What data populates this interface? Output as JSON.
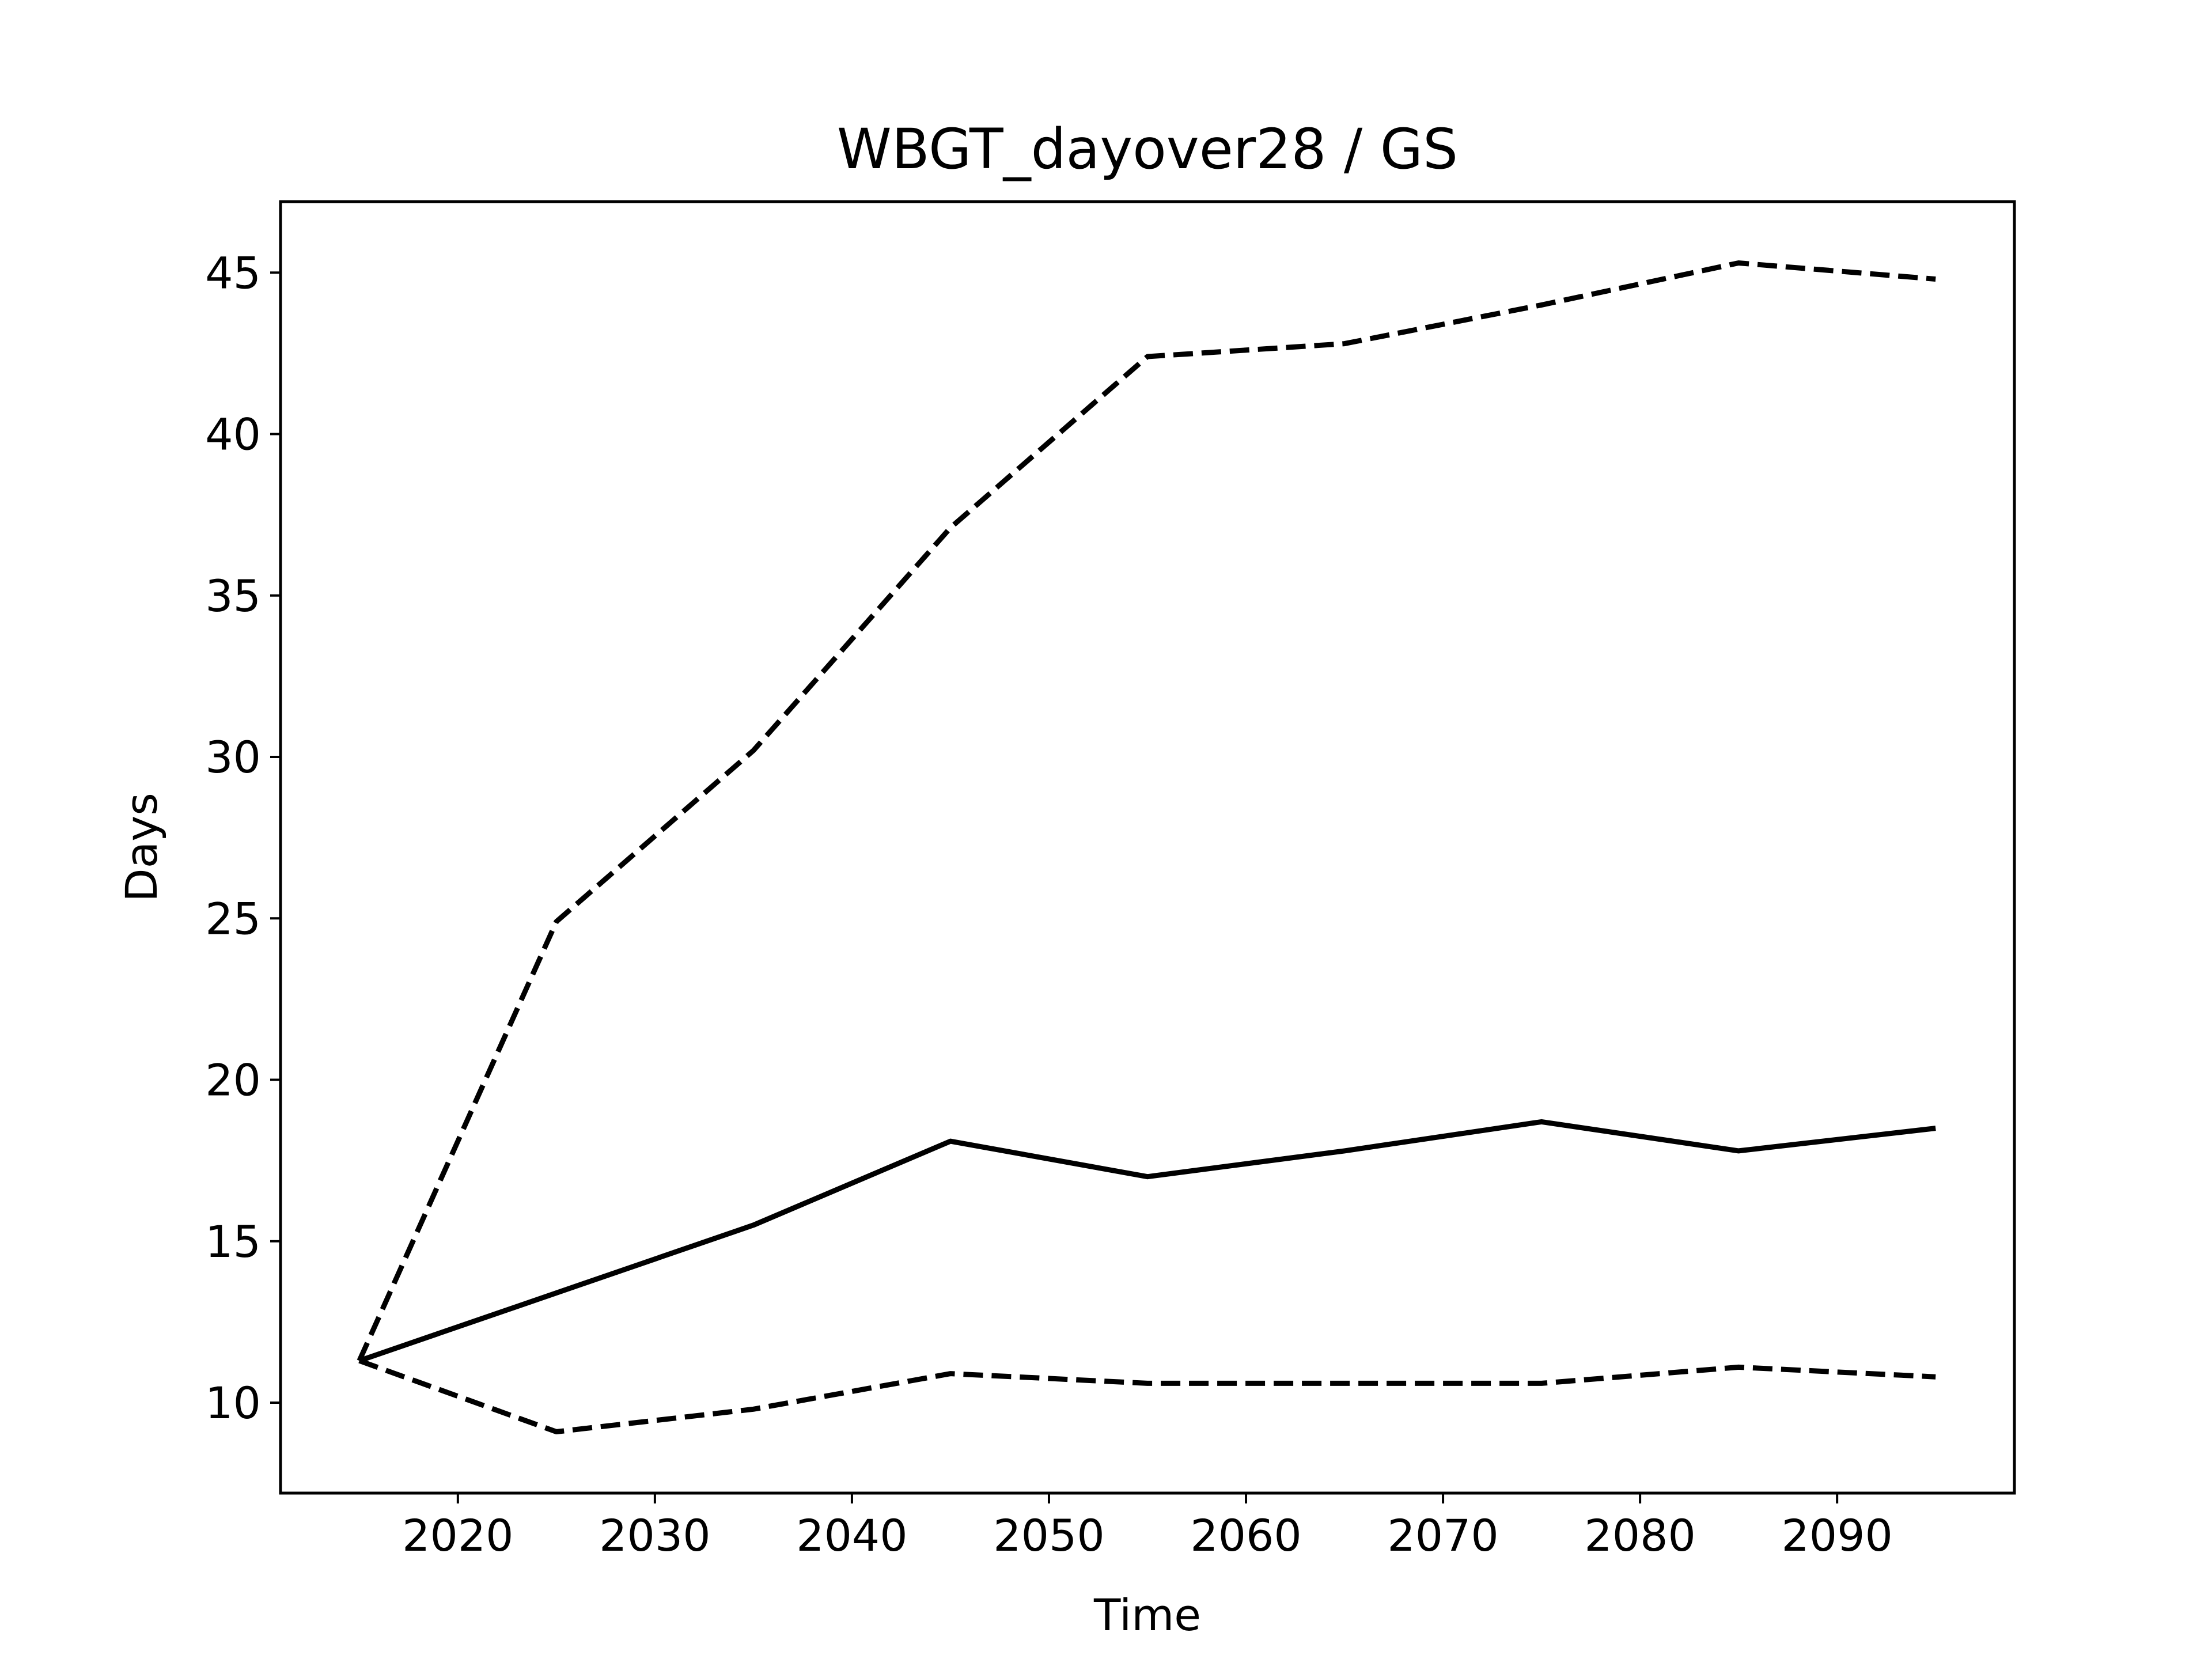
{
  "chart_data": {
    "type": "line",
    "title": "WBGT_dayover28 / GS",
    "xlabel": "Time",
    "ylabel": "Days",
    "xlim": [
      2011,
      2099
    ],
    "ylim": [
      7.2,
      47.2
    ],
    "xticks": [
      2020,
      2030,
      2040,
      2050,
      2060,
      2070,
      2080,
      2090
    ],
    "yticks": [
      10,
      15,
      20,
      25,
      30,
      35,
      40,
      45
    ],
    "grid": false,
    "x": [
      2015,
      2025,
      2035,
      2045,
      2055,
      2065,
      2075,
      2085,
      2095
    ],
    "series": [
      {
        "style": "dashed",
        "color": "#000000",
        "values": [
          11.3,
          24.9,
          30.2,
          37.1,
          42.4,
          42.8,
          44.0,
          45.3,
          44.8
        ]
      },
      {
        "style": "solid",
        "color": "#000000",
        "values": [
          11.3,
          13.4,
          15.5,
          18.1,
          17.0,
          17.8,
          18.7,
          17.8,
          18.5
        ]
      },
      {
        "style": "dashed",
        "color": "#000000",
        "values": [
          11.3,
          9.1,
          9.8,
          10.9,
          10.6,
          10.6,
          10.6,
          11.1,
          10.8
        ]
      }
    ]
  }
}
